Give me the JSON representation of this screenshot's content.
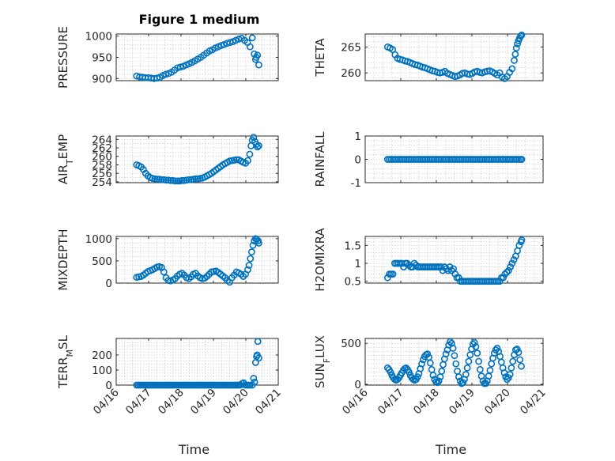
{
  "figure": {
    "title": "Figure 1 medium"
  },
  "chart_data": [
    {
      "type": "scatter",
      "panel": 1,
      "title": "Figure 1 medium",
      "ylabel_parts": [
        "PRESSURE"
      ],
      "xlabel": "",
      "xlim": [
        0,
        5
      ],
      "xticks": [
        0,
        1,
        2,
        3,
        4,
        5
      ],
      "xticklabels": [],
      "ylim": [
        895,
        1005
      ],
      "yticks": [
        900,
        950,
        1000
      ],
      "yticklabels": [
        "900",
        "950",
        "1000"
      ],
      "ygrid_minor": 10,
      "xgrid_minor": 0.25,
      "grid": true,
      "x": [
        0.63,
        0.72,
        0.81,
        0.9,
        0.99,
        1.08,
        1.17,
        1.26,
        1.35,
        1.44,
        1.53,
        1.62,
        1.71,
        1.8,
        1.89,
        1.98,
        2.07,
        2.16,
        2.25,
        2.34,
        2.43,
        2.52,
        2.61,
        2.7,
        2.79,
        2.88,
        2.97,
        3.06,
        3.15,
        3.24,
        3.33,
        3.42,
        3.51,
        3.6,
        3.69,
        3.78,
        3.87,
        3.96,
        4.05,
        4.13,
        4.2,
        4.26,
        4.3,
        4.32,
        4.36,
        4.4
      ],
      "y": [
        906,
        904,
        903,
        902,
        902,
        901,
        900,
        901,
        903,
        907,
        910,
        912,
        915,
        920,
        925,
        927,
        929,
        932,
        935,
        938,
        942,
        946,
        950,
        955,
        960,
        965,
        968,
        972,
        975,
        978,
        980,
        983,
        985,
        987,
        990,
        993,
        995,
        990,
        985,
        975,
        996,
        958,
        945,
        950,
        955,
        932
      ]
    },
    {
      "type": "scatter",
      "panel": 2,
      "ylabel_parts": [
        "THETA"
      ],
      "xlabel": "",
      "xlim": [
        0,
        5
      ],
      "xticks": [
        0,
        1,
        2,
        3,
        4,
        5
      ],
      "xticklabels": [],
      "ylim": [
        258.5,
        267.5
      ],
      "yticks": [
        260,
        265
      ],
      "yticklabels": [
        "260",
        "265"
      ],
      "ygrid_minor": 1,
      "xgrid_minor": 0.25,
      "grid": true,
      "x": [
        0.63,
        0.7,
        0.77,
        0.84,
        0.91,
        0.98,
        1.05,
        1.12,
        1.19,
        1.26,
        1.33,
        1.4,
        1.47,
        1.54,
        1.61,
        1.68,
        1.75,
        1.82,
        1.89,
        1.96,
        2.03,
        2.1,
        2.17,
        2.24,
        2.31,
        2.38,
        2.45,
        2.52,
        2.59,
        2.66,
        2.73,
        2.8,
        2.87,
        2.94,
        3.01,
        3.08,
        3.15,
        3.22,
        3.29,
        3.36,
        3.43,
        3.5,
        3.57,
        3.64,
        3.71,
        3.78,
        3.85,
        3.92,
        3.99,
        4.06,
        4.13,
        4.19,
        4.22,
        4.25,
        4.28,
        4.31,
        4.34,
        4.37,
        4.4
      ],
      "y": [
        265,
        264.8,
        264.5,
        263.5,
        262.8,
        262.6,
        262.5,
        262.3,
        262.2,
        262,
        261.8,
        261.6,
        261.5,
        261.3,
        261.1,
        261,
        260.8,
        260.6,
        260.4,
        260.3,
        260.1,
        260,
        260.1,
        260.3,
        259.9,
        259.7,
        259.5,
        259.3,
        259.4,
        259.6,
        259.9,
        260,
        259.8,
        259.7,
        259.9,
        260.2,
        260.3,
        260.1,
        260,
        260.2,
        260.3,
        260.4,
        260.2,
        259.9,
        259.6,
        260,
        259.2,
        258.9,
        259.3,
        260.1,
        260.8,
        262.4,
        263.6,
        264.8,
        265.6,
        266.2,
        266.7,
        267.1,
        267.3
      ]
    },
    {
      "type": "scatter",
      "panel": 3,
      "ylabel_parts": [
        "AIR",
        "T",
        "EMP"
      ],
      "xlabel": "",
      "xlim": [
        0,
        5
      ],
      "xticks": [
        0,
        1,
        2,
        3,
        4,
        5
      ],
      "xticklabels": [],
      "ylim": [
        253.8,
        264.8
      ],
      "yticks": [
        254,
        256,
        258,
        260,
        262,
        264
      ],
      "yticklabels": [
        "254",
        "256",
        "258",
        "260",
        "262",
        "264"
      ],
      "ygrid_minor": 1,
      "xgrid_minor": 0.25,
      "grid": true,
      "x": [
        0.63,
        0.7,
        0.77,
        0.84,
        0.91,
        0.98,
        1.05,
        1.12,
        1.19,
        1.26,
        1.33,
        1.4,
        1.47,
        1.54,
        1.61,
        1.68,
        1.75,
        1.82,
        1.89,
        1.96,
        2.03,
        2.1,
        2.17,
        2.24,
        2.31,
        2.38,
        2.45,
        2.52,
        2.59,
        2.66,
        2.73,
        2.8,
        2.87,
        2.94,
        3.01,
        3.08,
        3.15,
        3.22,
        3.29,
        3.36,
        3.43,
        3.5,
        3.57,
        3.64,
        3.71,
        3.78,
        3.85,
        3.92,
        3.99,
        4.06,
        4.12,
        4.16,
        4.2,
        4.24,
        4.28,
        4.32,
        4.36,
        4.4
      ],
      "y": [
        258,
        257.8,
        257.5,
        256.9,
        256,
        255.4,
        255,
        254.8,
        254.7,
        254.6,
        254.6,
        254.5,
        254.5,
        254.4,
        254.4,
        254.3,
        254.3,
        254.2,
        254.2,
        254.2,
        254.3,
        254.3,
        254.4,
        254.5,
        254.5,
        254.6,
        254.7,
        254.7,
        254.8,
        254.9,
        255.1,
        255.4,
        255.7,
        256,
        256.4,
        256.8,
        257.2,
        257.6,
        258,
        258.3,
        258.6,
        258.9,
        259,
        259.1,
        259.2,
        259.2,
        258.9,
        258.6,
        258.4,
        259,
        260.5,
        262.5,
        263.8,
        264.5,
        263.5,
        262.8,
        262.2,
        262.5
      ]
    },
    {
      "type": "scatter",
      "panel": 4,
      "ylabel_parts": [
        "RAINFALL"
      ],
      "xlabel": "",
      "xlim": [
        0,
        5
      ],
      "xticks": [
        0,
        1,
        2,
        3,
        4,
        5
      ],
      "xticklabels": [],
      "ylim": [
        -1,
        1
      ],
      "yticks": [
        -1,
        0,
        1
      ],
      "yticklabels": [
        "-1",
        "0",
        "1"
      ],
      "ygrid_minor": 0.2,
      "xgrid_minor": 0.25,
      "grid": true,
      "x": [
        0.63,
        0.68,
        0.73,
        0.78,
        0.83,
        0.88,
        0.93,
        0.98,
        1.03,
        1.08,
        1.13,
        1.18,
        1.23,
        1.28,
        1.33,
        1.38,
        1.43,
        1.48,
        1.53,
        1.58,
        1.63,
        1.68,
        1.73,
        1.78,
        1.83,
        1.88,
        1.93,
        1.98,
        2.03,
        2.08,
        2.13,
        2.18,
        2.23,
        2.28,
        2.33,
        2.38,
        2.43,
        2.48,
        2.53,
        2.58,
        2.63,
        2.68,
        2.73,
        2.78,
        2.83,
        2.88,
        2.93,
        2.98,
        3.03,
        3.08,
        3.13,
        3.18,
        3.23,
        3.28,
        3.33,
        3.38,
        3.43,
        3.48,
        3.53,
        3.58,
        3.63,
        3.68,
        3.73,
        3.78,
        3.83,
        3.88,
        3.93,
        3.98,
        4.03,
        4.08,
        4.13,
        4.18,
        4.23,
        4.28,
        4.33,
        4.38,
        4.4
      ],
      "y": [
        0,
        0,
        0,
        0,
        0,
        0,
        0,
        0,
        0,
        0,
        0,
        0,
        0,
        0,
        0,
        0,
        0,
        0,
        0,
        0,
        0,
        0,
        0,
        0,
        0,
        0,
        0,
        0,
        0,
        0,
        0,
        0,
        0,
        0,
        0,
        0,
        0,
        0,
        0,
        0,
        0,
        0,
        0,
        0,
        0,
        0,
        0,
        0,
        0,
        0,
        0,
        0,
        0,
        0,
        0,
        0,
        0,
        0,
        0,
        0,
        0,
        0,
        0,
        0,
        0,
        0,
        0,
        0,
        0,
        0,
        0,
        0,
        0,
        0,
        0,
        0,
        0
      ]
    },
    {
      "type": "scatter",
      "panel": 5,
      "ylabel_parts": [
        "MIXDEPTH"
      ],
      "xlabel": "",
      "xlim": [
        0,
        5
      ],
      "xticks": [
        0,
        1,
        2,
        3,
        4,
        5
      ],
      "xticklabels": [],
      "ylim": [
        0,
        1050
      ],
      "yticks": [
        0,
        500,
        1000
      ],
      "yticklabels": [
        "0",
        "500",
        "1000"
      ],
      "ygrid_minor": 100,
      "xgrid_minor": 0.25,
      "grid": true,
      "x": [
        0.63,
        0.7,
        0.77,
        0.84,
        0.91,
        0.98,
        1.05,
        1.12,
        1.19,
        1.26,
        1.33,
        1.4,
        1.47,
        1.54,
        1.61,
        1.68,
        1.75,
        1.82,
        1.89,
        1.96,
        2.03,
        2.1,
        2.17,
        2.24,
        2.31,
        2.38,
        2.45,
        2.52,
        2.59,
        2.66,
        2.73,
        2.8,
        2.87,
        2.94,
        3.01,
        3.08,
        3.15,
        3.22,
        3.29,
        3.36,
        3.43,
        3.5,
        3.57,
        3.64,
        3.71,
        3.78,
        3.85,
        3.92,
        3.99,
        4.06,
        4.1,
        4.14,
        4.18,
        4.22,
        4.26,
        4.3,
        4.34,
        4.38,
        4.4
      ],
      "y": [
        130,
        140,
        150,
        180,
        220,
        260,
        280,
        300,
        330,
        360,
        370,
        350,
        250,
        120,
        60,
        50,
        70,
        100,
        160,
        200,
        220,
        180,
        120,
        100,
        140,
        200,
        220,
        160,
        120,
        100,
        110,
        150,
        200,
        250,
        260,
        270,
        240,
        200,
        160,
        120,
        60,
        20,
        120,
        180,
        250,
        230,
        200,
        150,
        200,
        300,
        400,
        550,
        700,
        850,
        950,
        1000,
        980,
        950,
        900
      ]
    },
    {
      "type": "scatter",
      "panel": 6,
      "ylabel_parts": [
        "H2OMIXRA"
      ],
      "xlabel": "",
      "xlim": [
        0,
        5
      ],
      "xticks": [
        0,
        1,
        2,
        3,
        4,
        5
      ],
      "xticklabels": [],
      "ylim": [
        0.45,
        1.75
      ],
      "yticks": [
        0.5,
        1,
        1.5
      ],
      "yticklabels": [
        "0.5",
        "1",
        "1.5"
      ],
      "ygrid_minor": 0.1,
      "xgrid_minor": 0.25,
      "grid": true,
      "x": [
        0.63,
        0.68,
        0.73,
        0.78,
        0.83,
        0.88,
        0.93,
        0.98,
        1.03,
        1.08,
        1.13,
        1.18,
        1.23,
        1.28,
        1.33,
        1.38,
        1.43,
        1.48,
        1.53,
        1.58,
        1.63,
        1.68,
        1.73,
        1.78,
        1.83,
        1.88,
        1.93,
        1.98,
        2.03,
        2.08,
        2.13,
        2.18,
        2.23,
        2.28,
        2.33,
        2.38,
        2.43,
        2.48,
        2.53,
        2.58,
        2.63,
        2.68,
        2.73,
        2.78,
        2.83,
        2.88,
        2.93,
        2.98,
        3.03,
        3.08,
        3.13,
        3.18,
        3.23,
        3.28,
        3.33,
        3.38,
        3.43,
        3.48,
        3.53,
        3.58,
        3.63,
        3.68,
        3.73,
        3.78,
        3.83,
        3.88,
        3.93,
        3.98,
        4.03,
        4.08,
        4.13,
        4.18,
        4.23,
        4.28,
        4.33,
        4.38,
        4.4
      ],
      "y": [
        0.6,
        0.7,
        0.7,
        0.7,
        1,
        1,
        1,
        1,
        1,
        0.9,
        1,
        1,
        0.95,
        0.9,
        0.9,
        1,
        0.95,
        0.9,
        0.9,
        0.9,
        0.9,
        0.9,
        0.9,
        0.9,
        0.9,
        0.9,
        0.9,
        0.9,
        0.9,
        0.9,
        0.9,
        0.8,
        0.9,
        0.85,
        0.8,
        0.9,
        0.8,
        0.85,
        0.7,
        0.6,
        0.6,
        0.5,
        0.5,
        0.5,
        0.5,
        0.5,
        0.5,
        0.5,
        0.5,
        0.5,
        0.5,
        0.5,
        0.5,
        0.5,
        0.5,
        0.5,
        0.5,
        0.5,
        0.5,
        0.5,
        0.5,
        0.5,
        0.5,
        0.5,
        0.6,
        0.6,
        0.7,
        0.75,
        0.8,
        0.9,
        1,
        1.1,
        1.2,
        1.35,
        1.5,
        1.6,
        1.65
      ]
    },
    {
      "type": "scatter",
      "panel": 7,
      "ylabel_parts": [
        "TERR",
        "M",
        "SL"
      ],
      "xlabel": "Time",
      "xlim": [
        0,
        5
      ],
      "xticks": [
        0,
        1,
        2,
        3,
        4,
        5
      ],
      "xticklabels": [
        "04/16",
        "04/17",
        "04/18",
        "04/19",
        "04/20",
        "04/21"
      ],
      "ylim": [
        0,
        310
      ],
      "yticks": [
        0,
        100,
        200
      ],
      "yticklabels": [
        "0",
        "100",
        "200"
      ],
      "ygrid_minor": 20,
      "xgrid_minor": 0.25,
      "grid": true,
      "x": [
        0.63,
        0.68,
        0.73,
        0.78,
        0.83,
        0.88,
        0.93,
        0.98,
        1.03,
        1.08,
        1.13,
        1.18,
        1.23,
        1.28,
        1.33,
        1.38,
        1.43,
        1.48,
        1.53,
        1.58,
        1.63,
        1.68,
        1.73,
        1.78,
        1.83,
        1.88,
        1.93,
        1.98,
        2.03,
        2.08,
        2.13,
        2.18,
        2.23,
        2.28,
        2.33,
        2.38,
        2.43,
        2.48,
        2.53,
        2.58,
        2.63,
        2.68,
        2.73,
        2.78,
        2.83,
        2.88,
        2.93,
        2.98,
        3.03,
        3.08,
        3.13,
        3.18,
        3.23,
        3.28,
        3.33,
        3.38,
        3.43,
        3.48,
        3.53,
        3.58,
        3.63,
        3.68,
        3.73,
        3.78,
        3.83,
        3.88,
        3.93,
        3.98,
        4.03,
        4.08,
        4.13,
        4.2,
        4.24,
        4.27,
        4.3,
        4.33,
        4.35,
        4.37,
        4.4
      ],
      "y": [
        0,
        0,
        0,
        0,
        0,
        0,
        0,
        0,
        0,
        0,
        0,
        0,
        0,
        0,
        0,
        0,
        0,
        0,
        0,
        0,
        0,
        0,
        0,
        0,
        0,
        0,
        0,
        0,
        0,
        0,
        0,
        0,
        0,
        0,
        0,
        0,
        0,
        0,
        0,
        0,
        0,
        0,
        0,
        0,
        0,
        0,
        0,
        0,
        0,
        0,
        0,
        0,
        0,
        0,
        0,
        0,
        0,
        0,
        0,
        0,
        0,
        0,
        0,
        0,
        0,
        10,
        15,
        0,
        0,
        0,
        0,
        0,
        45,
        20,
        150,
        190,
        200,
        290,
        180
      ]
    },
    {
      "type": "scatter",
      "panel": 8,
      "ylabel_parts": [
        "SUN",
        "F",
        "LUX"
      ],
      "xlabel": "Time",
      "xlim": [
        0,
        5
      ],
      "xticks": [
        0,
        1,
        2,
        3,
        4,
        5
      ],
      "xticklabels": [
        "04/16",
        "04/17",
        "04/18",
        "04/19",
        "04/20",
        "04/21"
      ],
      "ylim": [
        -10,
        560
      ],
      "yticks": [
        0,
        500
      ],
      "yticklabels": [
        "0",
        "500"
      ],
      "ygrid_minor": 50,
      "xgrid_minor": 0.25,
      "grid": true,
      "x": [
        0.63,
        0.67,
        0.71,
        0.75,
        0.79,
        0.83,
        0.87,
        0.91,
        0.95,
        0.99,
        1.03,
        1.07,
        1.11,
        1.15,
        1.19,
        1.23,
        1.27,
        1.31,
        1.35,
        1.39,
        1.43,
        1.47,
        1.51,
        1.55,
        1.59,
        1.63,
        1.67,
        1.71,
        1.75,
        1.79,
        1.83,
        1.87,
        1.91,
        1.95,
        1.99,
        2.03,
        2.07,
        2.11,
        2.15,
        2.19,
        2.23,
        2.27,
        2.31,
        2.35,
        2.39,
        2.43,
        2.47,
        2.51,
        2.55,
        2.59,
        2.63,
        2.67,
        2.71,
        2.75,
        2.79,
        2.83,
        2.87,
        2.91,
        2.95,
        2.99,
        3.03,
        3.07,
        3.11,
        3.15,
        3.19,
        3.23,
        3.27,
        3.31,
        3.35,
        3.39,
        3.43,
        3.47,
        3.51,
        3.55,
        3.59,
        3.63,
        3.67,
        3.71,
        3.75,
        3.79,
        3.83,
        3.87,
        3.91,
        3.95,
        3.99,
        4.03,
        4.07,
        4.11,
        4.15,
        4.19,
        4.23,
        4.27,
        4.31,
        4.35,
        4.39
      ],
      "y": [
        200,
        180,
        150,
        110,
        80,
        60,
        50,
        60,
        80,
        110,
        140,
        170,
        190,
        200,
        180,
        150,
        110,
        80,
        60,
        50,
        60,
        90,
        130,
        190,
        250,
        300,
        340,
        360,
        370,
        330,
        260,
        180,
        110,
        60,
        30,
        20,
        40,
        90,
        160,
        240,
        310,
        370,
        420,
        480,
        520,
        500,
        440,
        350,
        250,
        160,
        90,
        40,
        10,
        20,
        60,
        120,
        200,
        280,
        360,
        430,
        490,
        510,
        460,
        380,
        280,
        180,
        100,
        40,
        10,
        10,
        40,
        100,
        170,
        250,
        320,
        380,
        420,
        440,
        400,
        340,
        270,
        200,
        140,
        90,
        60,
        80,
        120,
        200,
        280,
        360,
        420,
        430,
        390,
        300,
        220
      ]
    }
  ]
}
